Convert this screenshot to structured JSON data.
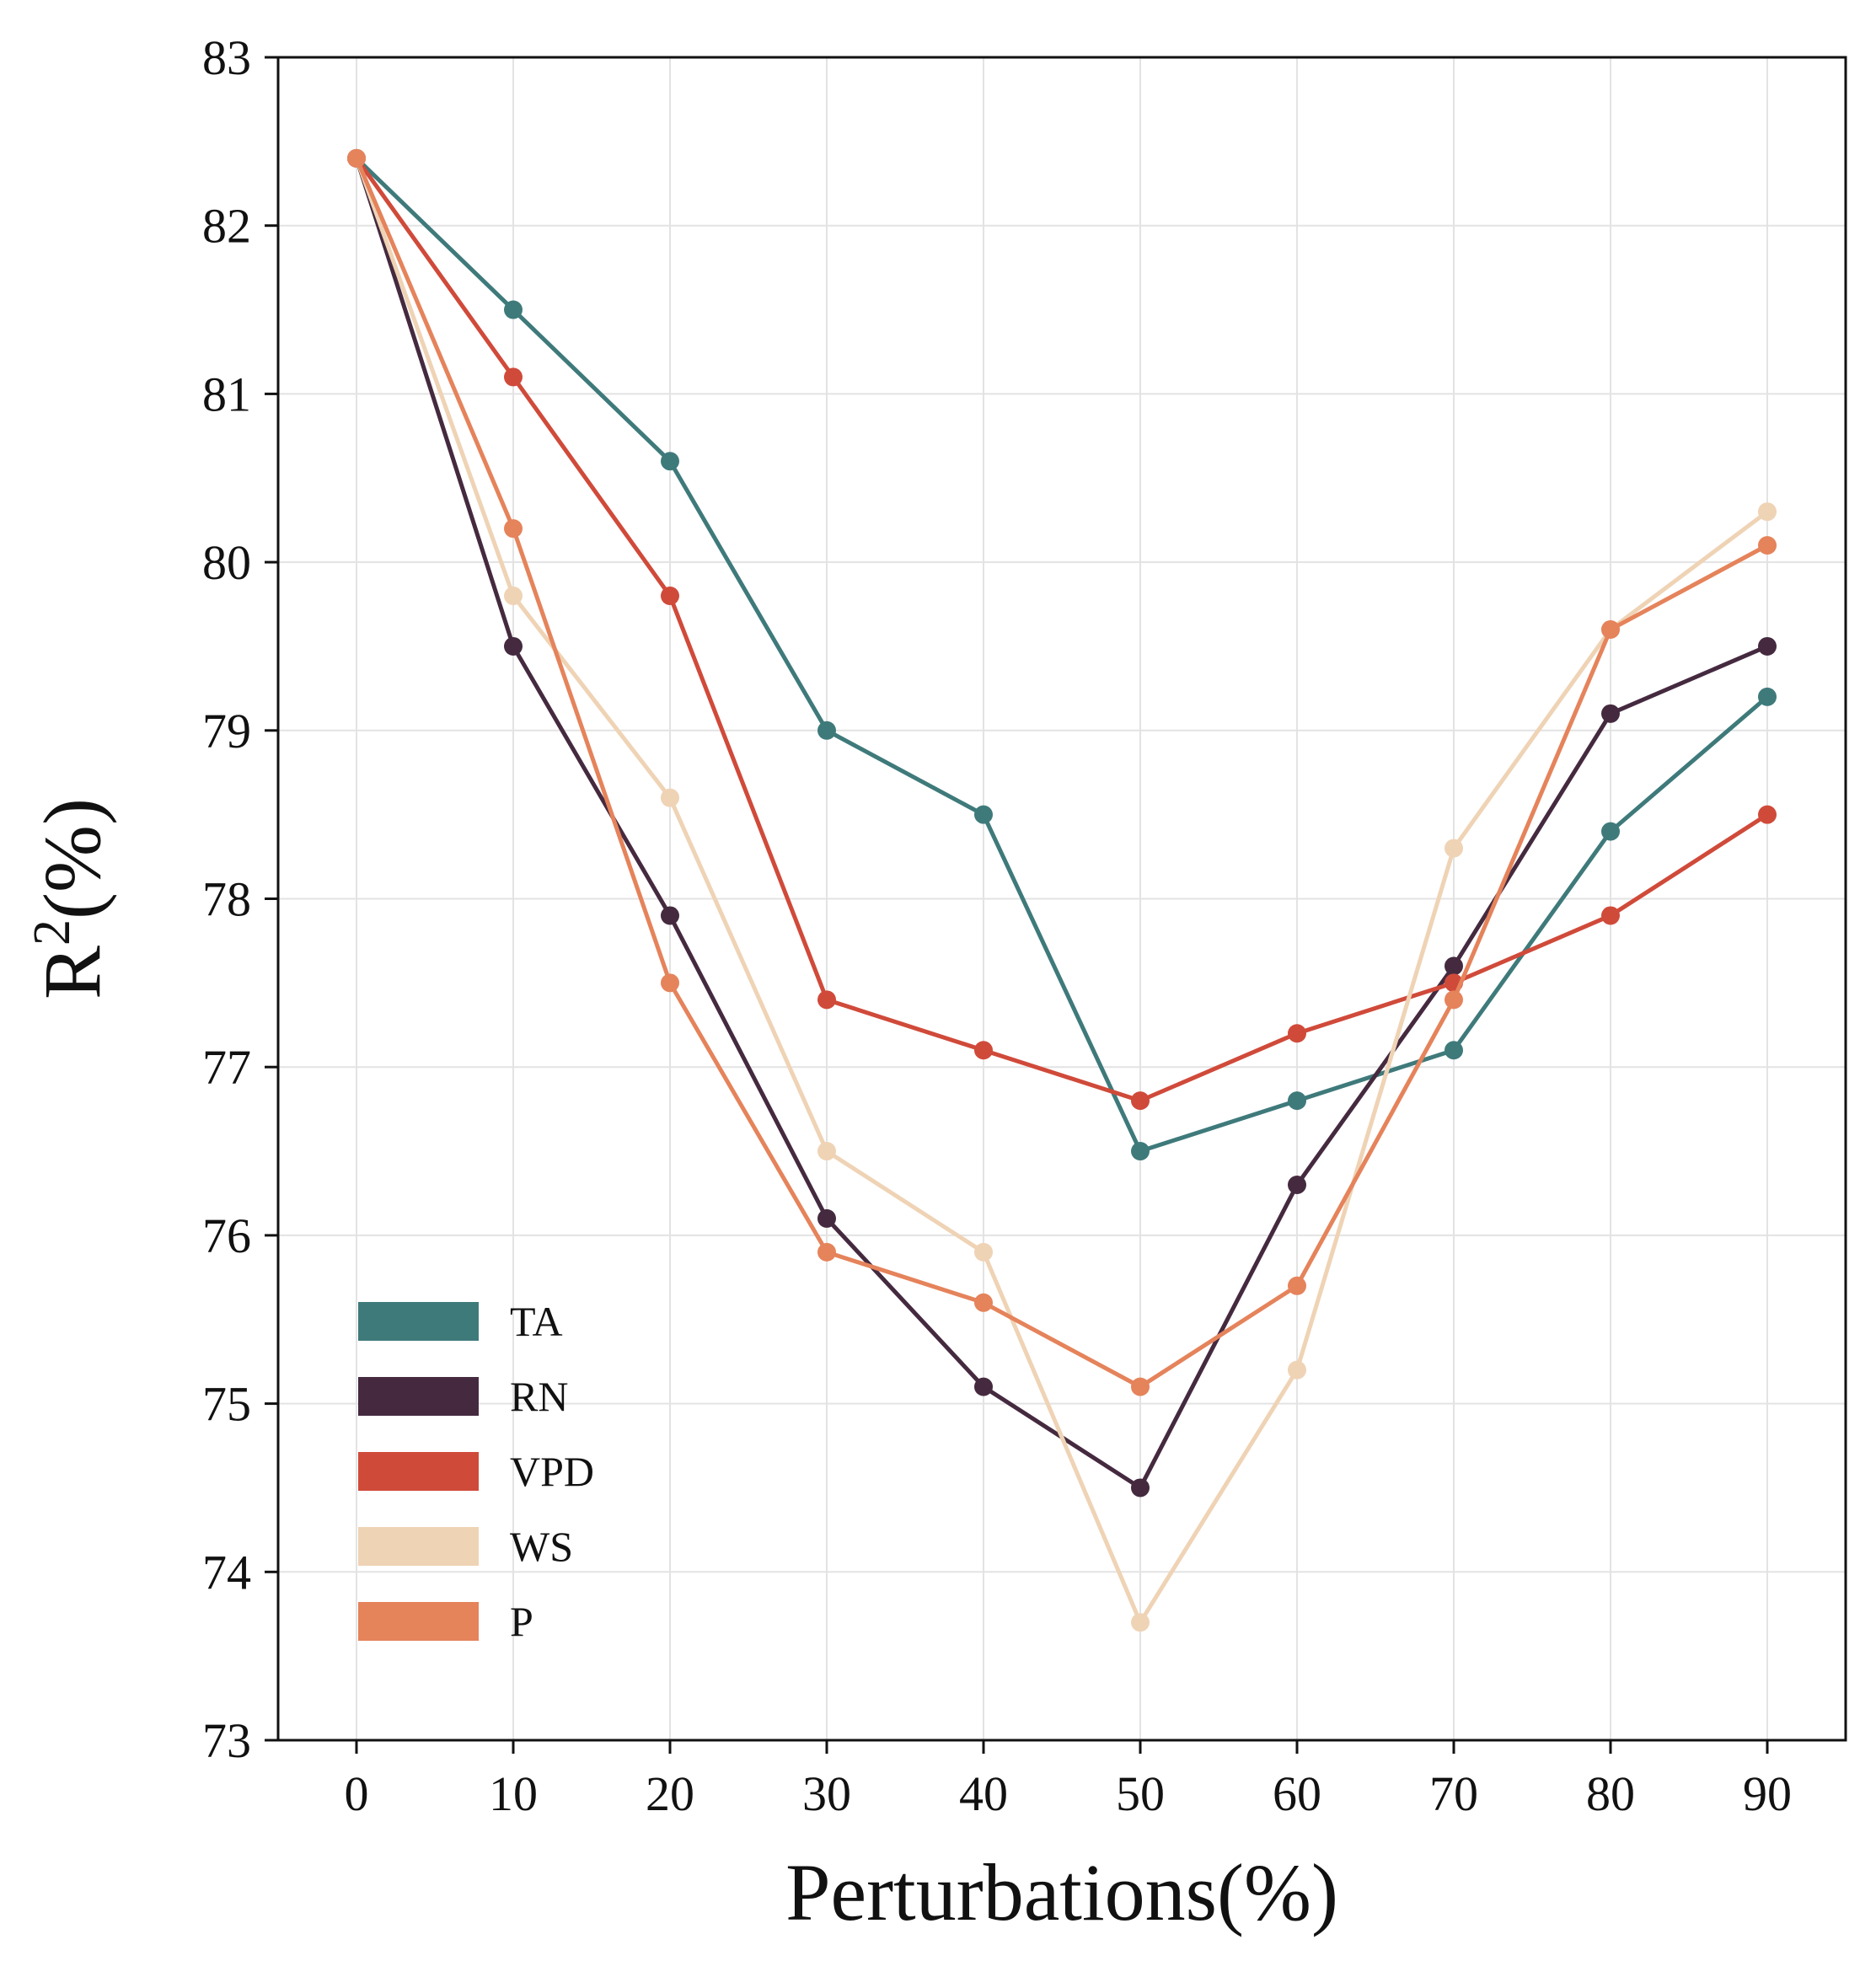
{
  "chart_data": {
    "type": "line",
    "title": "",
    "xlabel": "Perturbations(%)",
    "ylabel_base": "R",
    "ylabel_sup": "2",
    "ylabel_rest": "(%)",
    "x": [
      0,
      10,
      20,
      30,
      40,
      50,
      60,
      70,
      80,
      90
    ],
    "xlim": [
      -5,
      95
    ],
    "ylim": [
      73,
      83
    ],
    "yticks": [
      73,
      74,
      75,
      76,
      77,
      78,
      79,
      80,
      81,
      82,
      83
    ],
    "grid": true,
    "legend_position": "lower-left",
    "series": [
      {
        "name": "TA",
        "color": "#3f7a7b",
        "values": [
          82.4,
          81.5,
          80.6,
          79.0,
          78.5,
          76.5,
          76.8,
          77.1,
          78.4,
          79.2
        ]
      },
      {
        "name": "RN",
        "color": "#452a3f",
        "values": [
          82.4,
          79.5,
          77.9,
          76.1,
          75.1,
          74.5,
          76.3,
          77.6,
          79.1,
          79.5
        ]
      },
      {
        "name": "VPD",
        "color": "#d04a3a",
        "values": [
          82.4,
          81.1,
          79.8,
          77.4,
          77.1,
          76.8,
          77.2,
          77.5,
          77.9,
          78.5
        ]
      },
      {
        "name": "WS",
        "color": "#efd3b5",
        "values": [
          82.4,
          79.8,
          78.6,
          76.5,
          75.9,
          73.7,
          75.2,
          78.3,
          79.6,
          80.3
        ]
      },
      {
        "name": "P",
        "color": "#e5835b",
        "values": [
          82.4,
          80.2,
          77.5,
          75.9,
          75.6,
          75.1,
          75.7,
          77.4,
          79.6,
          80.1
        ]
      }
    ]
  }
}
